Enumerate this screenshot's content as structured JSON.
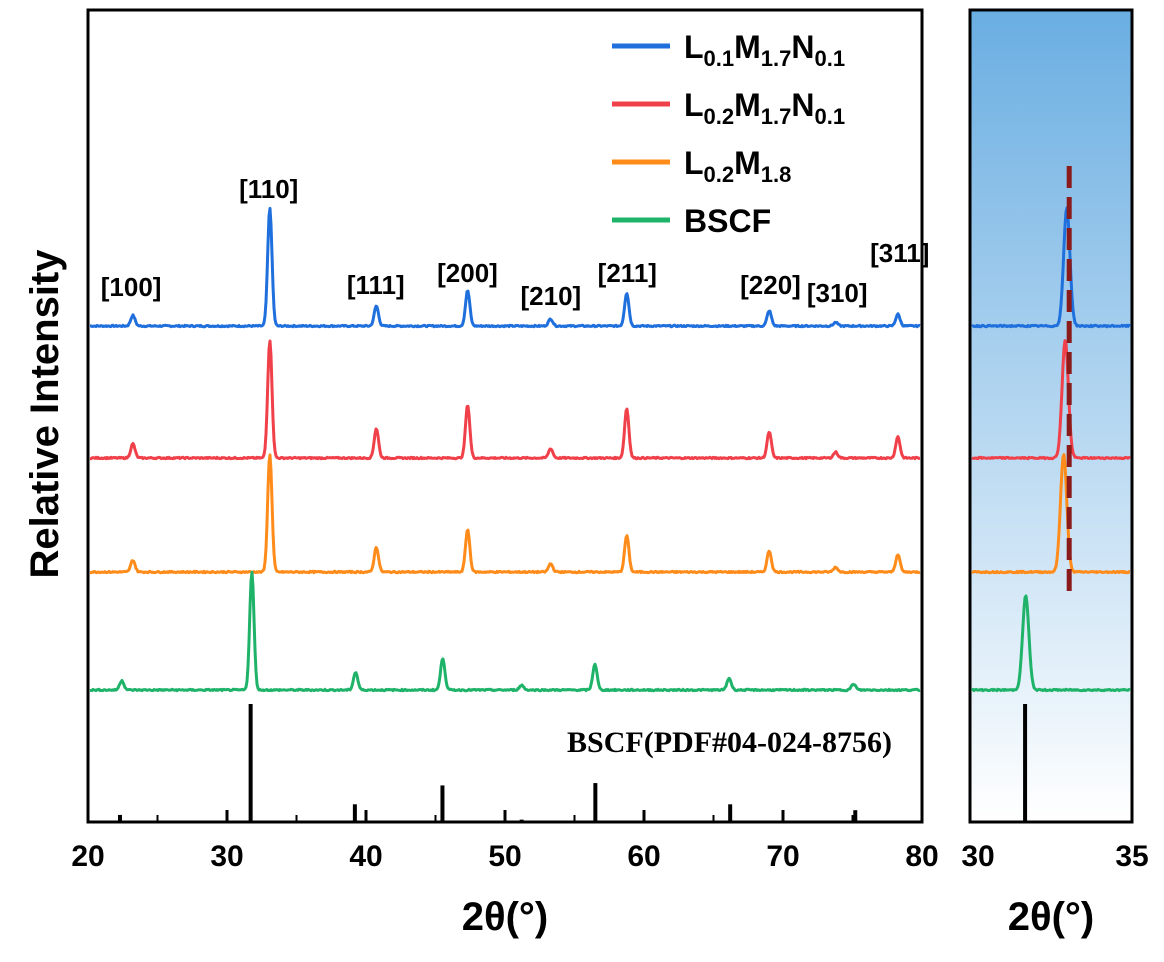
{
  "chart_data": [
    {
      "type": "line",
      "panel": "main",
      "xlabel": "2θ(°)",
      "ylabel": "Relative Intensity",
      "xlim": [
        20,
        80
      ],
      "x_ticks": [
        20,
        30,
        40,
        50,
        60,
        70,
        80
      ],
      "x_tick_labels": [
        "20",
        "30",
        "40",
        "50",
        "60",
        "70",
        "80"
      ],
      "series": [
        {
          "name": "L0.1M1.7N0.1",
          "legend": {
            "L": "L",
            "l_sub": "0.1",
            "M": "M",
            "m_sub": "1.7",
            "N": "N",
            "n_sub": "0.1"
          },
          "color": "#1f6fdc",
          "baseline": 3,
          "peaks": [
            [
              23.1,
              0.09
            ],
            [
              33.0,
              1.0
            ],
            [
              40.7,
              0.17
            ],
            [
              47.3,
              0.3
            ],
            [
              53.3,
              0.06
            ],
            [
              58.8,
              0.28
            ],
            [
              69.1,
              0.13
            ],
            [
              73.9,
              0.03
            ],
            [
              78.4,
              0.1
            ]
          ]
        },
        {
          "name": "L0.2M1.7N0.1",
          "legend": {
            "L": "L",
            "l_sub": "0.2",
            "M": "M",
            "m_sub": "1.7",
            "N": "N",
            "n_sub": "0.1"
          },
          "color": "#f0404a",
          "baseline": 2,
          "peaks": [
            [
              23.1,
              0.12
            ],
            [
              33.0,
              1.0
            ],
            [
              40.7,
              0.25
            ],
            [
              47.3,
              0.45
            ],
            [
              53.3,
              0.08
            ],
            [
              58.8,
              0.42
            ],
            [
              69.1,
              0.22
            ],
            [
              73.9,
              0.05
            ],
            [
              78.4,
              0.18
            ]
          ]
        },
        {
          "name": "L0.2M1.8",
          "legend": {
            "L": "L",
            "l_sub": "0.2",
            "M": "M",
            "m_sub": "1.8"
          },
          "color": "#ff8c1a",
          "baseline": 1,
          "peaks": [
            [
              23.1,
              0.1
            ],
            [
              33.0,
              1.0
            ],
            [
              40.7,
              0.21
            ],
            [
              47.3,
              0.36
            ],
            [
              53.3,
              0.07
            ],
            [
              58.8,
              0.31
            ],
            [
              69.1,
              0.18
            ],
            [
              73.9,
              0.04
            ],
            [
              78.4,
              0.15
            ]
          ]
        },
        {
          "name": "BSCF",
          "legend": {
            "L": "BSCF"
          },
          "color": "#1fb36a",
          "baseline": 0,
          "peaks": [
            [
              22.3,
              0.08
            ],
            [
              31.7,
              1.0
            ],
            [
              39.2,
              0.15
            ],
            [
              45.5,
              0.27
            ],
            [
              51.2,
              0.04
            ],
            [
              56.5,
              0.22
            ],
            [
              66.2,
              0.1
            ],
            [
              75.2,
              0.05
            ]
          ]
        }
      ],
      "peak_labels": [
        {
          "text": "[100]",
          "x": 23.1
        },
        {
          "text": "[110]",
          "x": 33.0
        },
        {
          "text": "[111]",
          "x": 40.7
        },
        {
          "text": "[200]",
          "x": 47.3
        },
        {
          "text": "[210]",
          "x": 53.3
        },
        {
          "text": "[211]",
          "x": 58.8
        },
        {
          "text": "[220]",
          "x": 69.1
        },
        {
          "text": "[310]",
          "x": 73.9
        },
        {
          "text": "[311]",
          "x": 78.4
        }
      ],
      "reference": {
        "label": "BSCF(PDF#04-024-8756)",
        "color": "#000000",
        "lines": [
          [
            22.3,
            0.06
          ],
          [
            31.7,
            1.0
          ],
          [
            39.2,
            0.15
          ],
          [
            45.5,
            0.31
          ],
          [
            51.2,
            0.02
          ],
          [
            56.5,
            0.33
          ],
          [
            66.2,
            0.15
          ],
          [
            75.2,
            0.1
          ]
        ]
      }
    },
    {
      "type": "line",
      "panel": "zoom",
      "xlabel": "2θ(°)",
      "xlim": [
        30,
        35
      ],
      "x_ticks": [
        30,
        35
      ],
      "x_tick_labels": [
        "30",
        "35"
      ],
      "background_gradient": [
        "#6aaee2",
        "#ffffff"
      ],
      "shift_marker": {
        "x": 33.0,
        "color": "#8b1a1a",
        "style": "dashed"
      },
      "series": [
        {
          "name": "L0.1M1.7N0.1",
          "color": "#1f6fdc",
          "baseline": 3,
          "peak": [
            33.0,
            1.0
          ]
        },
        {
          "name": "L0.2M1.7N0.1",
          "color": "#f0404a",
          "baseline": 2,
          "peak": [
            32.95,
            1.0
          ]
        },
        {
          "name": "L0.2M1.8",
          "color": "#ff8c1a",
          "baseline": 1,
          "peak": [
            32.9,
            1.0
          ]
        },
        {
          "name": "BSCF",
          "color": "#1fb36a",
          "baseline": 0,
          "peak": [
            31.7,
            0.8
          ]
        }
      ],
      "reference": {
        "color": "#000000",
        "lines": [
          [
            31.7,
            1.0
          ]
        ]
      }
    }
  ]
}
